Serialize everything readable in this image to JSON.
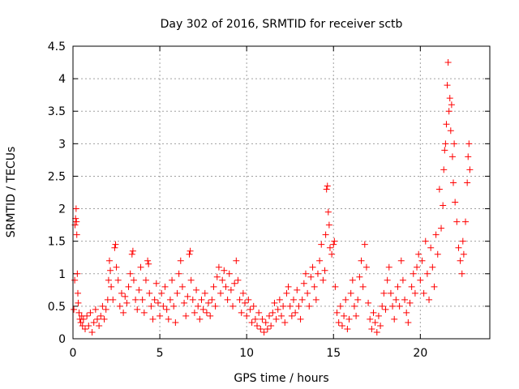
{
  "chart_data": {
    "type": "scatter",
    "title": "Day 302 of 2016, SRMTID for receiver sctb",
    "xlabel": "GPS time / hours",
    "ylabel": "SRMTID / TECUs",
    "xlim": [
      0,
      24
    ],
    "ylim": [
      0,
      4.5
    ],
    "xticks": [
      0,
      5,
      10,
      15,
      20
    ],
    "xtick_labels": [
      "0",
      "5",
      "10",
      "15",
      "20"
    ],
    "yticks": [
      0,
      0.5,
      1,
      1.5,
      2,
      2.5,
      3,
      3.5,
      4,
      4.5
    ],
    "ytick_labels": [
      "0",
      "0.5",
      "1",
      "1.5",
      "2",
      "2.5",
      "3",
      "3.5",
      "4",
      "4.5"
    ],
    "grid": true,
    "marker": "+",
    "series": [
      {
        "name": "SRMTID",
        "color": "#ff0000",
        "points": [
          [
            0.05,
            0.45
          ],
          [
            0.1,
            0.9
          ],
          [
            0.12,
            1.75
          ],
          [
            0.15,
            1.85
          ],
          [
            0.18,
            2.0
          ],
          [
            0.2,
            1.8
          ],
          [
            0.22,
            1.6
          ],
          [
            0.25,
            1.0
          ],
          [
            0.28,
            0.7
          ],
          [
            0.3,
            0.55
          ],
          [
            0.35,
            0.4
          ],
          [
            0.4,
            0.3
          ],
          [
            0.45,
            0.25
          ],
          [
            0.5,
            0.35
          ],
          [
            0.55,
            0.2
          ],
          [
            0.6,
            0.3
          ],
          [
            0.7,
            0.15
          ],
          [
            0.8,
            0.35
          ],
          [
            0.9,
            0.2
          ],
          [
            1.0,
            0.4
          ],
          [
            1.1,
            0.1
          ],
          [
            1.2,
            0.25
          ],
          [
            1.3,
            0.45
          ],
          [
            1.4,
            0.3
          ],
          [
            1.5,
            0.2
          ],
          [
            1.6,
            0.35
          ],
          [
            1.7,
            0.5
          ],
          [
            1.8,
            0.3
          ],
          [
            1.9,
            0.45
          ],
          [
            2.0,
            0.6
          ],
          [
            2.05,
            0.9
          ],
          [
            2.1,
            1.2
          ],
          [
            2.15,
            1.05
          ],
          [
            2.2,
            0.8
          ],
          [
            2.3,
            0.6
          ],
          [
            2.4,
            1.4
          ],
          [
            2.45,
            1.45
          ],
          [
            2.5,
            1.1
          ],
          [
            2.6,
            0.9
          ],
          [
            2.7,
            0.5
          ],
          [
            2.8,
            0.7
          ],
          [
            2.9,
            0.4
          ],
          [
            3.0,
            0.65
          ],
          [
            3.1,
            0.55
          ],
          [
            3.2,
            0.8
          ],
          [
            3.3,
            1.0
          ],
          [
            3.4,
            1.3
          ],
          [
            3.45,
            1.35
          ],
          [
            3.5,
            0.9
          ],
          [
            3.6,
            0.6
          ],
          [
            3.7,
            0.45
          ],
          [
            3.8,
            0.75
          ],
          [
            3.9,
            1.1
          ],
          [
            4.0,
            0.6
          ],
          [
            4.1,
            0.4
          ],
          [
            4.2,
            0.9
          ],
          [
            4.3,
            1.2
          ],
          [
            4.35,
            1.15
          ],
          [
            4.4,
            0.7
          ],
          [
            4.5,
            0.5
          ],
          [
            4.6,
            0.3
          ],
          [
            4.7,
            0.6
          ],
          [
            4.8,
            0.85
          ],
          [
            4.9,
            0.55
          ],
          [
            5.0,
            0.35
          ],
          [
            5.1,
            0.7
          ],
          [
            5.2,
            0.5
          ],
          [
            5.3,
            0.8
          ],
          [
            5.4,
            0.45
          ],
          [
            5.5,
            0.3
          ],
          [
            5.6,
            0.6
          ],
          [
            5.7,
            0.9
          ],
          [
            5.8,
            0.5
          ],
          [
            5.9,
            0.25
          ],
          [
            6.0,
            0.7
          ],
          [
            6.1,
            1.0
          ],
          [
            6.2,
            1.2
          ],
          [
            6.3,
            0.8
          ],
          [
            6.4,
            0.55
          ],
          [
            6.5,
            0.35
          ],
          [
            6.6,
            0.65
          ],
          [
            6.7,
            1.3
          ],
          [
            6.75,
            1.35
          ],
          [
            6.8,
            0.9
          ],
          [
            6.9,
            0.6
          ],
          [
            7.0,
            0.4
          ],
          [
            7.1,
            0.75
          ],
          [
            7.2,
            0.5
          ],
          [
            7.3,
            0.3
          ],
          [
            7.4,
            0.6
          ],
          [
            7.5,
            0.45
          ],
          [
            7.6,
            0.7
          ],
          [
            7.7,
            0.4
          ],
          [
            7.8,
            0.55
          ],
          [
            7.9,
            0.35
          ],
          [
            8.0,
            0.6
          ],
          [
            8.1,
            0.8
          ],
          [
            8.2,
            0.5
          ],
          [
            8.3,
            0.95
          ],
          [
            8.4,
            1.1
          ],
          [
            8.5,
            0.7
          ],
          [
            8.6,
            0.9
          ],
          [
            8.7,
            1.05
          ],
          [
            8.8,
            0.8
          ],
          [
            8.9,
            0.6
          ],
          [
            9.0,
            1.0
          ],
          [
            9.1,
            0.75
          ],
          [
            9.2,
            0.5
          ],
          [
            9.3,
            0.85
          ],
          [
            9.4,
            1.2
          ],
          [
            9.5,
            0.9
          ],
          [
            9.6,
            0.6
          ],
          [
            9.7,
            0.4
          ],
          [
            9.8,
            0.7
          ],
          [
            9.9,
            0.55
          ],
          [
            10.0,
            0.35
          ],
          [
            10.1,
            0.6
          ],
          [
            10.2,
            0.45
          ],
          [
            10.3,
            0.25
          ],
          [
            10.4,
            0.5
          ],
          [
            10.5,
            0.3
          ],
          [
            10.6,
            0.2
          ],
          [
            10.7,
            0.4
          ],
          [
            10.8,
            0.15
          ],
          [
            10.9,
            0.3
          ],
          [
            11.0,
            0.1
          ],
          [
            11.1,
            0.25
          ],
          [
            11.2,
            0.15
          ],
          [
            11.3,
            0.35
          ],
          [
            11.4,
            0.2
          ],
          [
            11.5,
            0.4
          ],
          [
            11.6,
            0.55
          ],
          [
            11.7,
            0.3
          ],
          [
            11.8,
            0.45
          ],
          [
            11.9,
            0.6
          ],
          [
            12.0,
            0.35
          ],
          [
            12.1,
            0.5
          ],
          [
            12.2,
            0.25
          ],
          [
            12.3,
            0.7
          ],
          [
            12.4,
            0.8
          ],
          [
            12.5,
            0.5
          ],
          [
            12.6,
            0.35
          ],
          [
            12.7,
            0.6
          ],
          [
            12.8,
            0.4
          ],
          [
            12.9,
            0.75
          ],
          [
            13.0,
            0.5
          ],
          [
            13.1,
            0.3
          ],
          [
            13.2,
            0.6
          ],
          [
            13.3,
            0.85
          ],
          [
            13.4,
            1.0
          ],
          [
            13.5,
            0.7
          ],
          [
            13.6,
            0.5
          ],
          [
            13.7,
            0.95
          ],
          [
            13.8,
            1.1
          ],
          [
            13.9,
            0.8
          ],
          [
            14.0,
            0.6
          ],
          [
            14.1,
            1.0
          ],
          [
            14.2,
            1.2
          ],
          [
            14.3,
            1.45
          ],
          [
            14.4,
            0.9
          ],
          [
            14.5,
            1.05
          ],
          [
            14.55,
            1.6
          ],
          [
            14.6,
            2.3
          ],
          [
            14.65,
            2.35
          ],
          [
            14.7,
            1.95
          ],
          [
            14.75,
            1.75
          ],
          [
            14.8,
            1.4
          ],
          [
            14.9,
            1.3
          ],
          [
            15.0,
            1.45
          ],
          [
            15.05,
            1.5
          ],
          [
            15.1,
            0.8
          ],
          [
            15.2,
            0.4
          ],
          [
            15.3,
            0.25
          ],
          [
            15.4,
            0.5
          ],
          [
            15.5,
            0.2
          ],
          [
            15.6,
            0.35
          ],
          [
            15.7,
            0.6
          ],
          [
            15.8,
            0.15
          ],
          [
            15.9,
            0.3
          ],
          [
            16.0,
            0.7
          ],
          [
            16.1,
            0.9
          ],
          [
            16.2,
            0.5
          ],
          [
            16.3,
            0.35
          ],
          [
            16.4,
            0.6
          ],
          [
            16.5,
            0.95
          ],
          [
            16.6,
            1.2
          ],
          [
            16.7,
            0.8
          ],
          [
            16.8,
            1.45
          ],
          [
            16.9,
            1.1
          ],
          [
            17.0,
            0.55
          ],
          [
            17.1,
            0.3
          ],
          [
            17.2,
            0.15
          ],
          [
            17.3,
            0.4
          ],
          [
            17.4,
            0.25
          ],
          [
            17.5,
            0.1
          ],
          [
            17.6,
            0.35
          ],
          [
            17.7,
            0.2
          ],
          [
            17.8,
            0.5
          ],
          [
            17.9,
            0.7
          ],
          [
            18.0,
            0.45
          ],
          [
            18.1,
            0.9
          ],
          [
            18.2,
            1.1
          ],
          [
            18.3,
            0.7
          ],
          [
            18.4,
            0.5
          ],
          [
            18.5,
            0.3
          ],
          [
            18.6,
            0.6
          ],
          [
            18.7,
            0.8
          ],
          [
            18.8,
            0.5
          ],
          [
            18.9,
            1.2
          ],
          [
            19.0,
            0.9
          ],
          [
            19.1,
            0.6
          ],
          [
            19.2,
            0.4
          ],
          [
            19.3,
            0.25
          ],
          [
            19.4,
            0.55
          ],
          [
            19.5,
            0.8
          ],
          [
            19.6,
            1.0
          ],
          [
            19.7,
            0.7
          ],
          [
            19.8,
            1.1
          ],
          [
            19.9,
            1.3
          ],
          [
            20.0,
            0.9
          ],
          [
            20.1,
            1.2
          ],
          [
            20.2,
            0.7
          ],
          [
            20.3,
            1.5
          ],
          [
            20.4,
            1.0
          ],
          [
            20.5,
            0.6
          ],
          [
            20.6,
            1.4
          ],
          [
            20.7,
            1.1
          ],
          [
            20.8,
            0.8
          ],
          [
            20.9,
            1.6
          ],
          [
            21.0,
            1.3
          ],
          [
            21.1,
            2.3
          ],
          [
            21.2,
            1.7
          ],
          [
            21.3,
            2.05
          ],
          [
            21.35,
            2.6
          ],
          [
            21.4,
            2.9
          ],
          [
            21.45,
            3.0
          ],
          [
            21.5,
            3.3
          ],
          [
            21.55,
            3.9
          ],
          [
            21.6,
            4.25
          ],
          [
            21.65,
            3.5
          ],
          [
            21.7,
            3.7
          ],
          [
            21.75,
            3.2
          ],
          [
            21.8,
            3.6
          ],
          [
            21.85,
            2.8
          ],
          [
            21.9,
            2.4
          ],
          [
            21.95,
            3.0
          ],
          [
            22.0,
            2.1
          ],
          [
            22.1,
            1.8
          ],
          [
            22.2,
            1.4
          ],
          [
            22.3,
            1.2
          ],
          [
            22.4,
            1.0
          ],
          [
            22.45,
            1.5
          ],
          [
            22.5,
            1.3
          ],
          [
            22.6,
            1.8
          ],
          [
            22.7,
            2.4
          ],
          [
            22.75,
            2.8
          ],
          [
            22.8,
            3.0
          ],
          [
            22.85,
            2.6
          ]
        ]
      }
    ]
  }
}
